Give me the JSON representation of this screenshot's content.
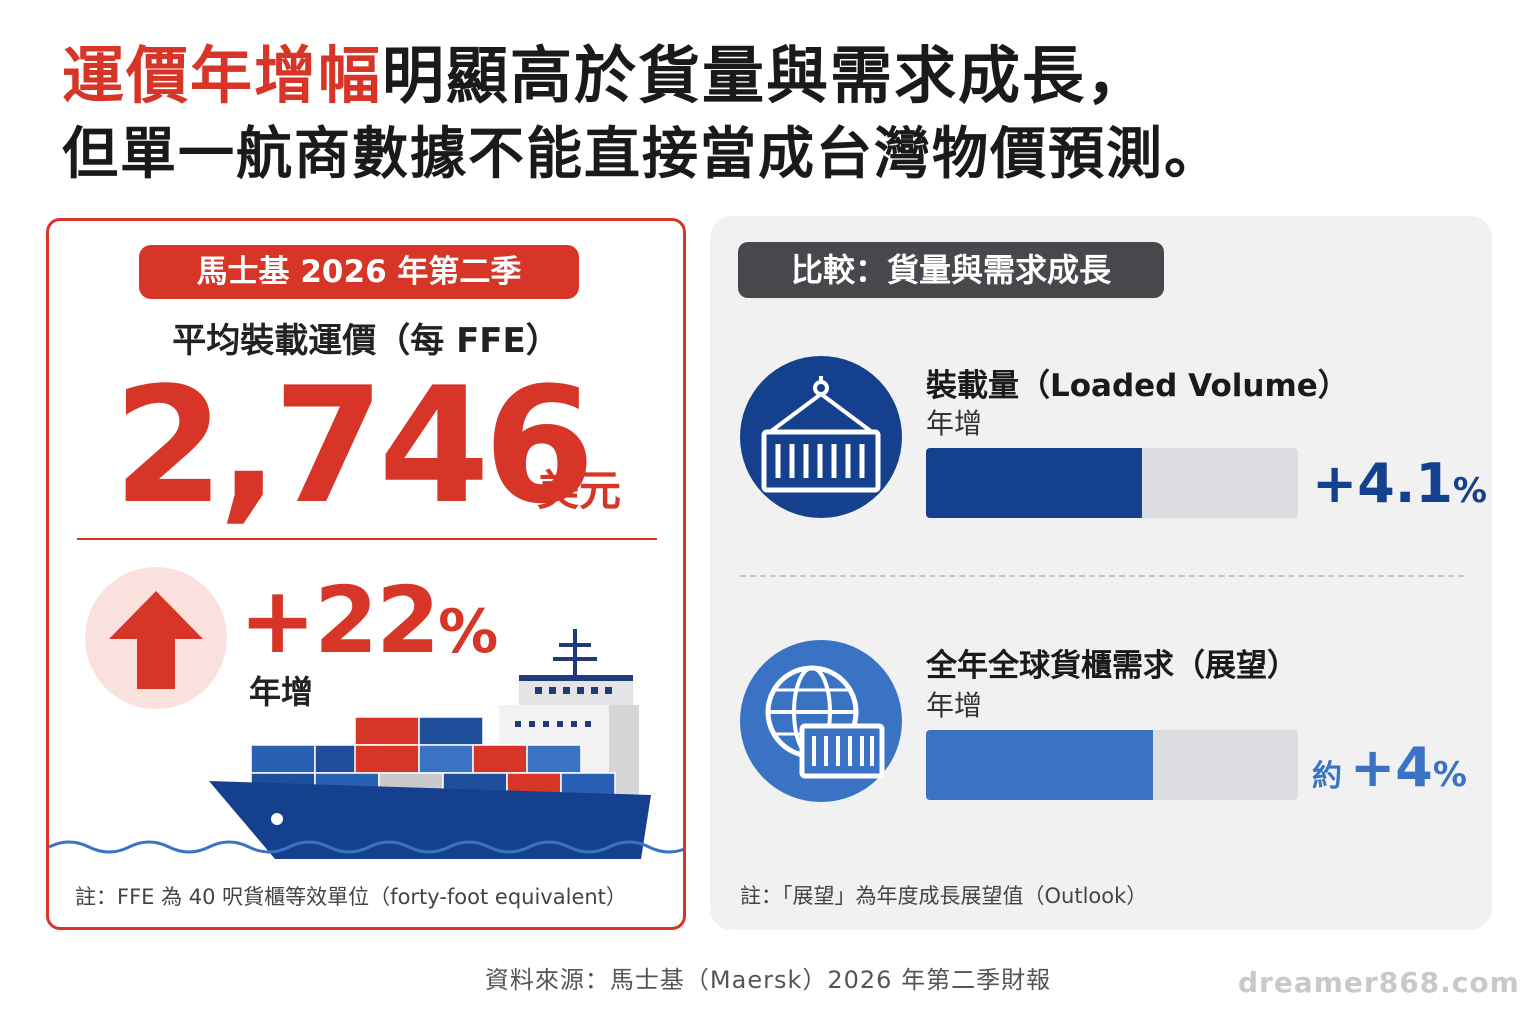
{
  "headline": {
    "line1_highlight": "運價年增幅",
    "line1_rest": "明顯高於貨量與需求成長，",
    "line2": "但單一航商數據不能直接當成台灣物價預測。"
  },
  "left_card": {
    "pill": "馬士基 2026 年第二季",
    "metric_label": "平均裝載運價（每 FFE）",
    "value": "2,746",
    "unit": "美元",
    "change": "+22",
    "change_pct_sign": "%",
    "change_label": "年增",
    "note": "註：FFE 為 40 呎貨櫃等效單位（forty-foot equivalent）"
  },
  "right_card": {
    "pill": "比較：貨量與需求成長",
    "rows": [
      {
        "title": "裝載量（Loaded Volume）",
        "sub": "年增",
        "prefix": "",
        "value": "+4.1",
        "pct": "%",
        "fill_percent": 58,
        "color": "#15408d"
      },
      {
        "title": "全年全球貨櫃需求（展望）",
        "sub": "年增",
        "prefix": "約",
        "value": "+4",
        "pct": "%",
        "fill_percent": 61,
        "color": "#3a73c4"
      }
    ],
    "note": "註：「展望」為年度成長展望值（Outlook）"
  },
  "source": "資料來源：馬士基（Maersk）2026 年第二季財報",
  "watermark": "dreamer868.com",
  "colors": {
    "accent_red": "#d63527",
    "navy": "#15408d",
    "blue": "#3a73c4",
    "pill_dark": "#46484c"
  },
  "icons": [
    "up-arrow-icon",
    "container-crane-icon",
    "globe-container-icon",
    "container-ship-illustration"
  ]
}
